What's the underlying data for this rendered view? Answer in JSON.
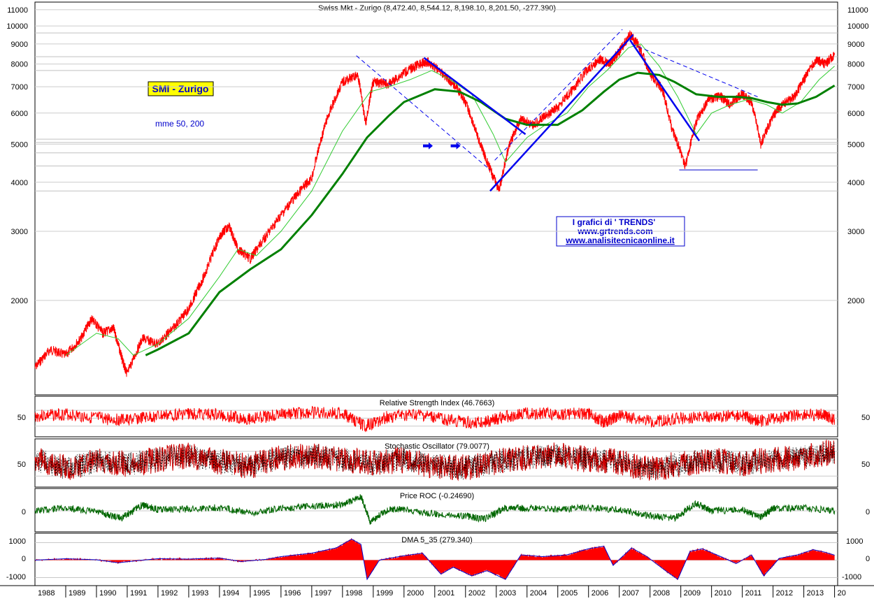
{
  "chart_data": {
    "type": "line",
    "scale": "log",
    "grid": true,
    "title": "Swiss Mkt - Zurigo (8,472.40, 8,544.12, 8,198.10, 8,201.50, -277.390)",
    "label_box": "SMI - Zurigo",
    "ma_note": "mme 50, 200",
    "watermark": [
      "I grafici di ' TRENDS'",
      "www.grtrends.com",
      "www.analisitecnicaonline.it"
    ],
    "y_ticks": [
      "11000",
      "10000",
      "9000",
      "8000",
      "7000",
      "6000",
      "5000",
      "4000",
      "3000",
      "2000"
    ],
    "y_tick_values": [
      11000,
      10000,
      9000,
      8000,
      7000,
      6000,
      5000,
      4000,
      3000,
      2000
    ],
    "ylim": [
      1150,
      11500
    ],
    "x_ticks": [
      "1988",
      "1989",
      "1990",
      "1991",
      "1992",
      "1993",
      "1994",
      "1995",
      "1996",
      "1997",
      "1998",
      "1999",
      "2000",
      "2001",
      "2002",
      "2003",
      "2004",
      "2005",
      "2006",
      "2007",
      "2008",
      "2009",
      "2010",
      "2011",
      "2012",
      "2013",
      "20"
    ],
    "xlim": [
      1988.0,
      2014.1
    ],
    "price": {
      "name": "SMI",
      "color": "#ff0000",
      "x": [
        1988.0,
        1988.5,
        1989.0,
        1989.5,
        1989.85,
        1990.2,
        1990.55,
        1990.85,
        1991.0,
        1991.5,
        1992.0,
        1992.5,
        1993.0,
        1993.5,
        1994.0,
        1994.3,
        1994.6,
        1995.0,
        1995.5,
        1996.0,
        1996.5,
        1997.0,
        1997.5,
        1998.0,
        1998.5,
        1998.75,
        1999.0,
        1999.5,
        2000.0,
        2000.5,
        2000.8,
        2001.3,
        2001.7,
        2002.0,
        2002.4,
        2002.75,
        2003.1,
        2003.4,
        2003.8,
        2004.2,
        2004.6,
        2005.0,
        2005.5,
        2006.0,
        2006.4,
        2006.7,
        2007.0,
        2007.35,
        2007.6,
        2008.0,
        2008.4,
        2008.7,
        2009.15,
        2009.5,
        2009.9,
        2010.3,
        2010.6,
        2011.0,
        2011.3,
        2011.6,
        2012.0,
        2012.3,
        2012.7,
        2013.0,
        2013.4,
        2013.7,
        2014.0
      ],
      "y": [
        1350,
        1500,
        1450,
        1600,
        1800,
        1650,
        1700,
        1400,
        1300,
        1600,
        1550,
        1700,
        1900,
        2300,
        2900,
        3100,
        2700,
        2550,
        2900,
        3300,
        3700,
        4100,
        5800,
        7200,
        7500,
        5600,
        7200,
        7100,
        7600,
        8000,
        8100,
        7500,
        7000,
        6400,
        5200,
        4400,
        3800,
        4900,
        5800,
        5600,
        5900,
        6200,
        6900,
        7800,
        8200,
        8000,
        8600,
        9500,
        9000,
        7500,
        6900,
        5500,
        4400,
        5700,
        6500,
        6600,
        6300,
        6700,
        6400,
        5000,
        5900,
        6300,
        6600,
        7300,
        8200,
        8000,
        8450
      ]
    },
    "ma_fast": {
      "name": "mme 50",
      "color": "#33cc33",
      "x": [
        1989.0,
        1990.0,
        1990.7,
        1991.2,
        1992.0,
        1993.0,
        1994.0,
        1994.6,
        1995.2,
        1996.0,
        1997.0,
        1998.0,
        1998.9,
        1999.5,
        2000.2,
        2000.9,
        2001.5,
        2002.2,
        2002.9,
        2003.3,
        2004.0,
        2004.6,
        2005.3,
        2006.0,
        2006.6,
        2007.3,
        2007.7,
        2008.3,
        2008.9,
        2009.5,
        2010.0,
        2010.6,
        2011.2,
        2011.8,
        2012.3,
        2012.9,
        2013.5,
        2014.0
      ],
      "y": [
        1450,
        1650,
        1600,
        1450,
        1550,
        1800,
        2300,
        2700,
        2600,
        3000,
        3800,
        5400,
        6800,
        7000,
        7300,
        7700,
        7300,
        6700,
        5300,
        4500,
        5200,
        5600,
        6000,
        7000,
        7700,
        8800,
        9000,
        7900,
        6600,
        5300,
        6000,
        6300,
        6500,
        6300,
        6000,
        6400,
        7300,
        7900
      ]
    },
    "ma_slow": {
      "name": "mme 200",
      "color": "#008000",
      "x": [
        1991.6,
        1992.0,
        1993.0,
        1994.0,
        1995.0,
        1996.0,
        1997.0,
        1998.0,
        1998.8,
        1999.5,
        2000.0,
        2001.0,
        2001.8,
        2002.5,
        2003.3,
        2004.0,
        2005.0,
        2005.8,
        2006.5,
        2007.0,
        2007.6,
        2008.3,
        2008.8,
        2009.5,
        2010.2,
        2010.8,
        2011.3,
        2011.8,
        2012.3,
        2012.8,
        2013.4,
        2014.0
      ],
      "y": [
        1450,
        1500,
        1650,
        2100,
        2400,
        2700,
        3300,
        4200,
        5200,
        5900,
        6400,
        6900,
        6800,
        6400,
        5800,
        5600,
        5600,
        6100,
        6800,
        7300,
        7600,
        7500,
        7200,
        6700,
        6600,
        6600,
        6550,
        6400,
        6300,
        6350,
        6600,
        7050
      ]
    },
    "trendlines_solid": [
      {
        "x": [
          2000.65,
          2003.95
        ],
        "y": [
          8300,
          5300
        ]
      },
      {
        "x": [
          2002.8,
          2007.45
        ],
        "y": [
          3800,
          9500
        ]
      },
      {
        "x": [
          2007.35,
          2009.6
        ],
        "y": [
          9200,
          5100
        ]
      }
    ],
    "trendlines_dashed": [
      {
        "x": [
          1998.45,
          2002.8
        ],
        "y": [
          8400,
          4300
        ]
      },
      {
        "x": [
          2002.95,
          2007.1
        ],
        "y": [
          4550,
          9800
        ]
      },
      {
        "x": [
          2007.4,
          2011.5
        ],
        "y": [
          9000,
          6600
        ]
      }
    ],
    "support_line": {
      "x": [
        2008.95,
        2011.5
      ],
      "y": [
        4300,
        4300
      ]
    },
    "arrows": [
      {
        "x": 2000.8,
        "y": 4950
      },
      {
        "x": 2001.7,
        "y": 4950
      }
    ],
    "horizontal_levels": [
      9600,
      8350,
      7700,
      5150,
      5050,
      4750,
      4400,
      3800
    ],
    "indicators": [
      {
        "name": "Relative Strength Index (46.7663)",
        "tick": "50",
        "ylim": [
          10,
          95
        ],
        "ref_levels": [
          70,
          50,
          30
        ],
        "color": "#ff0000",
        "x": [
          1988.0,
          1989.0,
          1990.0,
          1991.0,
          1992.0,
          1993.0,
          1994.0,
          1995.0,
          1996.0,
          1997.0,
          1998.0,
          1998.75,
          1999.5,
          2000.5,
          2001.5,
          2002.5,
          2003.2,
          2004.0,
          2005.0,
          2006.0,
          2006.5,
          2007.0,
          2008.0,
          2009.0,
          2010.0,
          2011.0,
          2011.6,
          2012.5,
          2013.5,
          2014.0
        ],
        "y": [
          55,
          60,
          50,
          45,
          55,
          62,
          58,
          48,
          60,
          64,
          62,
          30,
          55,
          58,
          45,
          38,
          52,
          62,
          60,
          62,
          40,
          58,
          42,
          50,
          55,
          56,
          42,
          55,
          60,
          47
        ]
      },
      {
        "name": "Stochastic Oscillator (79.0077)",
        "tick": "50",
        "ylim": [
          0,
          100
        ],
        "ref_levels": [
          80,
          20
        ],
        "color": "#cc0000",
        "x": [
          1988.0,
          1989.0,
          1990.0,
          1991.0,
          1992.0,
          1993.0,
          1994.0,
          1995.0,
          1996.0,
          1997.0,
          1998.0,
          1999.0,
          2000.0,
          2001.0,
          2002.0,
          2003.0,
          2004.0,
          2005.0,
          2006.0,
          2007.0,
          2008.0,
          2009.0,
          2010.0,
          2011.0,
          2012.0,
          2013.0,
          2014.0
        ],
        "y": [
          60,
          40,
          55,
          50,
          60,
          70,
          55,
          45,
          65,
          70,
          60,
          50,
          60,
          45,
          40,
          55,
          65,
          70,
          60,
          55,
          35,
          50,
          60,
          50,
          60,
          65,
          79
        ]
      },
      {
        "name": "Price ROC (-0.24690)",
        "tick": "0",
        "ylim": [
          -30,
          30
        ],
        "ref_levels": [
          0
        ],
        "color": "#006600",
        "x": [
          1988.0,
          1989.0,
          1990.0,
          1990.8,
          1991.5,
          1992.0,
          1993.0,
          1994.0,
          1995.0,
          1996.0,
          1997.0,
          1998.0,
          1998.6,
          1998.9,
          1999.5,
          2000.0,
          2001.0,
          2002.0,
          2002.6,
          2003.3,
          2004.0,
          2005.0,
          2006.0,
          2007.0,
          2008.0,
          2008.8,
          2009.5,
          2010.0,
          2011.0,
          2011.6,
          2012.0,
          2013.0,
          2014.0
        ],
        "y": [
          0,
          5,
          -2,
          -12,
          10,
          2,
          3,
          6,
          -4,
          4,
          8,
          10,
          24,
          -18,
          3,
          2,
          -5,
          -8,
          -14,
          5,
          4,
          3,
          5,
          2,
          -8,
          -12,
          12,
          0,
          2,
          -10,
          4,
          5,
          -0.25
        ]
      },
      {
        "name": "DMA 5_35 (279.340)",
        "ticks": [
          "1000",
          "0",
          "-1000"
        ],
        "tick_values": [
          1000,
          0,
          -1000
        ],
        "ylim": [
          -1300,
          1300
        ],
        "ref_levels": [
          1000,
          0,
          -1000
        ],
        "color": "#ff0000",
        "x": [
          1988.0,
          1989.0,
          1990.0,
          1990.7,
          1991.5,
          1992.0,
          1993.0,
          1994.0,
          1994.7,
          1995.5,
          1996.0,
          1997.0,
          1997.8,
          1998.3,
          1998.6,
          1998.8,
          1999.2,
          2000.0,
          2000.6,
          2001.2,
          2001.6,
          2002.2,
          2002.7,
          2003.3,
          2003.8,
          2004.5,
          2005.3,
          2006.0,
          2006.5,
          2006.8,
          2007.4,
          2007.9,
          2008.5,
          2008.9,
          2009.3,
          2009.7,
          2010.3,
          2010.8,
          2011.3,
          2011.7,
          2012.2,
          2012.8,
          2013.3,
          2013.7,
          2014.0
        ],
        "y": [
          0,
          80,
          20,
          -150,
          0,
          80,
          60,
          120,
          -80,
          40,
          200,
          400,
          700,
          1200,
          900,
          -1100,
          0,
          250,
          400,
          -800,
          -400,
          -900,
          -600,
          -1100,
          300,
          200,
          300,
          650,
          800,
          -300,
          700,
          200,
          -600,
          -1100,
          500,
          650,
          200,
          -200,
          300,
          -900,
          100,
          300,
          600,
          450,
          280
        ]
      }
    ]
  }
}
